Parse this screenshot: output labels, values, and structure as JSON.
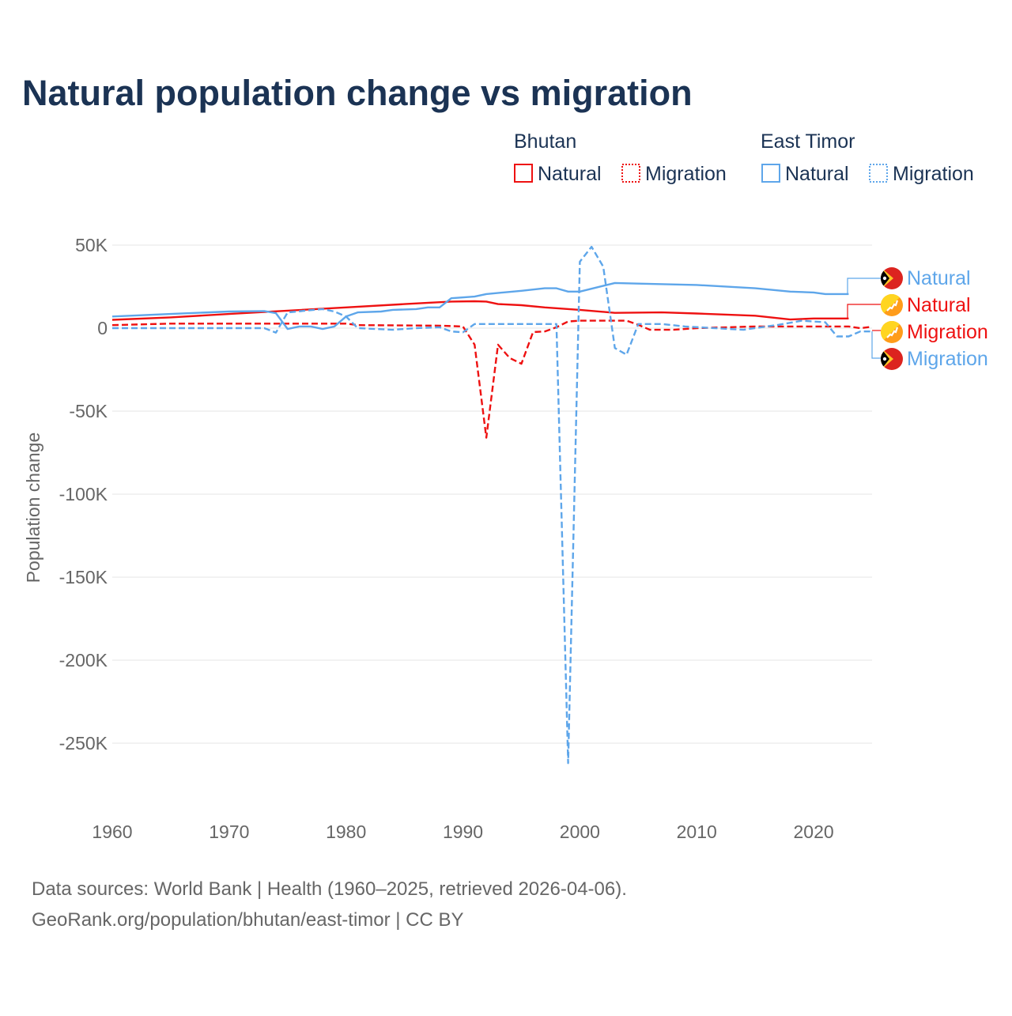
{
  "title": "Natural population change vs migration",
  "legend": {
    "groups": [
      {
        "name": "Bhutan",
        "items": [
          "Natural",
          "Migration"
        ],
        "color": "#ee1111"
      },
      {
        "name": "East Timor",
        "items": [
          "Natural",
          "Migration"
        ],
        "color": "#5ea6ea"
      }
    ]
  },
  "end_labels": [
    "Natural",
    "Natural",
    "Migration",
    "Migration"
  ],
  "footer": {
    "line1": "Data sources: World Bank | Health (1960–2025, retrieved 2026-04-06).",
    "line2": "GeoRank.org/population/bhutan/east-timor | CC BY"
  },
  "chart_data": {
    "type": "line",
    "title": "Natural population change vs migration",
    "xlabel": "",
    "ylabel": "Population change",
    "xlim": [
      1960,
      2025
    ],
    "ylim": [
      -262000,
      50000
    ],
    "x_ticks": [
      1960,
      1970,
      1980,
      1990,
      2000,
      2010,
      2020
    ],
    "x_tick_labels": [
      "1960",
      "1970",
      "1980",
      "1990",
      "2000",
      "2010",
      "2020"
    ],
    "y_ticks": [
      50000,
      0,
      -50000,
      -100000,
      -150000,
      -200000,
      -250000
    ],
    "y_tick_labels": [
      "50K",
      "0",
      "-50K",
      "-100K",
      "-150K",
      "-200K",
      "-250K"
    ],
    "grid": true,
    "legend_position": "top-right",
    "series": [
      {
        "name": "Bhutan Natural",
        "country": "Bhutan",
        "kind": "Natural",
        "color": "#ee1111",
        "dashed": false,
        "points": [
          [
            1960,
            5000
          ],
          [
            1965,
            6500
          ],
          [
            1970,
            8500
          ],
          [
            1975,
            10500
          ],
          [
            1980,
            12500
          ],
          [
            1985,
            14500
          ],
          [
            1989,
            16000
          ],
          [
            1991,
            16200
          ],
          [
            1992,
            16000
          ],
          [
            1993,
            14500
          ],
          [
            1995,
            13800
          ],
          [
            1997,
            12500
          ],
          [
            2000,
            11000
          ],
          [
            2003,
            9200
          ],
          [
            2007,
            9500
          ],
          [
            2010,
            8800
          ],
          [
            2015,
            7500
          ],
          [
            2018,
            5200
          ],
          [
            2020,
            5800
          ],
          [
            2023,
            5800
          ]
        ]
      },
      {
        "name": "Bhutan Migration",
        "country": "Bhutan",
        "kind": "Migration",
        "color": "#ee1111",
        "dashed": true,
        "points": [
          [
            1960,
            1800
          ],
          [
            1965,
            2700
          ],
          [
            1980,
            2700
          ],
          [
            1981,
            1800
          ],
          [
            1988,
            1500
          ],
          [
            1990,
            1000
          ],
          [
            1991,
            -10000
          ],
          [
            1992,
            -66000
          ],
          [
            1993,
            -10000
          ],
          [
            1994,
            -18000
          ],
          [
            1995,
            -21500
          ],
          [
            1996,
            -2400
          ],
          [
            1997,
            -2000
          ],
          [
            1998,
            500
          ],
          [
            1999,
            4000
          ],
          [
            2000,
            4500
          ],
          [
            2004,
            4500
          ],
          [
            2005,
            2000
          ],
          [
            2006,
            -1000
          ],
          [
            2008,
            -1000
          ],
          [
            2010,
            0
          ],
          [
            2015,
            1000
          ],
          [
            2020,
            1000
          ],
          [
            2023,
            1000
          ],
          [
            2024,
            0
          ],
          [
            2025,
            800
          ]
        ]
      },
      {
        "name": "East Timor Natural",
        "country": "East Timor",
        "kind": "Natural",
        "color": "#5ea6ea",
        "dashed": false,
        "points": [
          [
            1960,
            7000
          ],
          [
            1965,
            8500
          ],
          [
            1970,
            10000
          ],
          [
            1973,
            10300
          ],
          [
            1974,
            9000
          ],
          [
            1975,
            -500
          ],
          [
            1976,
            1000
          ],
          [
            1977,
            1000
          ],
          [
            1978,
            -500
          ],
          [
            1979,
            1000
          ],
          [
            1980,
            7000
          ],
          [
            1981,
            9500
          ],
          [
            1983,
            10000
          ],
          [
            1984,
            11000
          ],
          [
            1986,
            11500
          ],
          [
            1987,
            12500
          ],
          [
            1988,
            12500
          ],
          [
            1989,
            18000
          ],
          [
            1991,
            19000
          ],
          [
            1992,
            20500
          ],
          [
            1995,
            22500
          ],
          [
            1997,
            24000
          ],
          [
            1998,
            24000
          ],
          [
            1999,
            22000
          ],
          [
            2000,
            22000
          ],
          [
            2003,
            27200
          ],
          [
            2005,
            26800
          ],
          [
            2010,
            26000
          ],
          [
            2015,
            24000
          ],
          [
            2018,
            22000
          ],
          [
            2020,
            21500
          ],
          [
            2021,
            20500
          ],
          [
            2023,
            20500
          ]
        ]
      },
      {
        "name": "East Timor Migration",
        "country": "East Timor",
        "kind": "Migration",
        "color": "#5ea6ea",
        "dashed": true,
        "points": [
          [
            1960,
            0
          ],
          [
            1973,
            0
          ],
          [
            1974,
            -2700
          ],
          [
            1975,
            9500
          ],
          [
            1978,
            11500
          ],
          [
            1979,
            10000
          ],
          [
            1980,
            7000
          ],
          [
            1981,
            0
          ],
          [
            1984,
            -1000
          ],
          [
            1986,
            0
          ],
          [
            1988,
            500
          ],
          [
            1989,
            -2000
          ],
          [
            1990,
            -2500
          ],
          [
            1991,
            2500
          ],
          [
            1998,
            2500
          ],
          [
            1999,
            -262000
          ],
          [
            2000,
            40000
          ],
          [
            2001,
            49000
          ],
          [
            2002,
            37000
          ],
          [
            2003,
            -12000
          ],
          [
            2004,
            -16000
          ],
          [
            2005,
            2500
          ],
          [
            2007,
            2500
          ],
          [
            2009,
            1000
          ],
          [
            2014,
            -1000
          ],
          [
            2017,
            2000
          ],
          [
            2019,
            4500
          ],
          [
            2021,
            3500
          ],
          [
            2022,
            -5000
          ],
          [
            2023,
            -5000
          ],
          [
            2024,
            -2000
          ],
          [
            2025,
            -2000
          ]
        ]
      }
    ]
  }
}
